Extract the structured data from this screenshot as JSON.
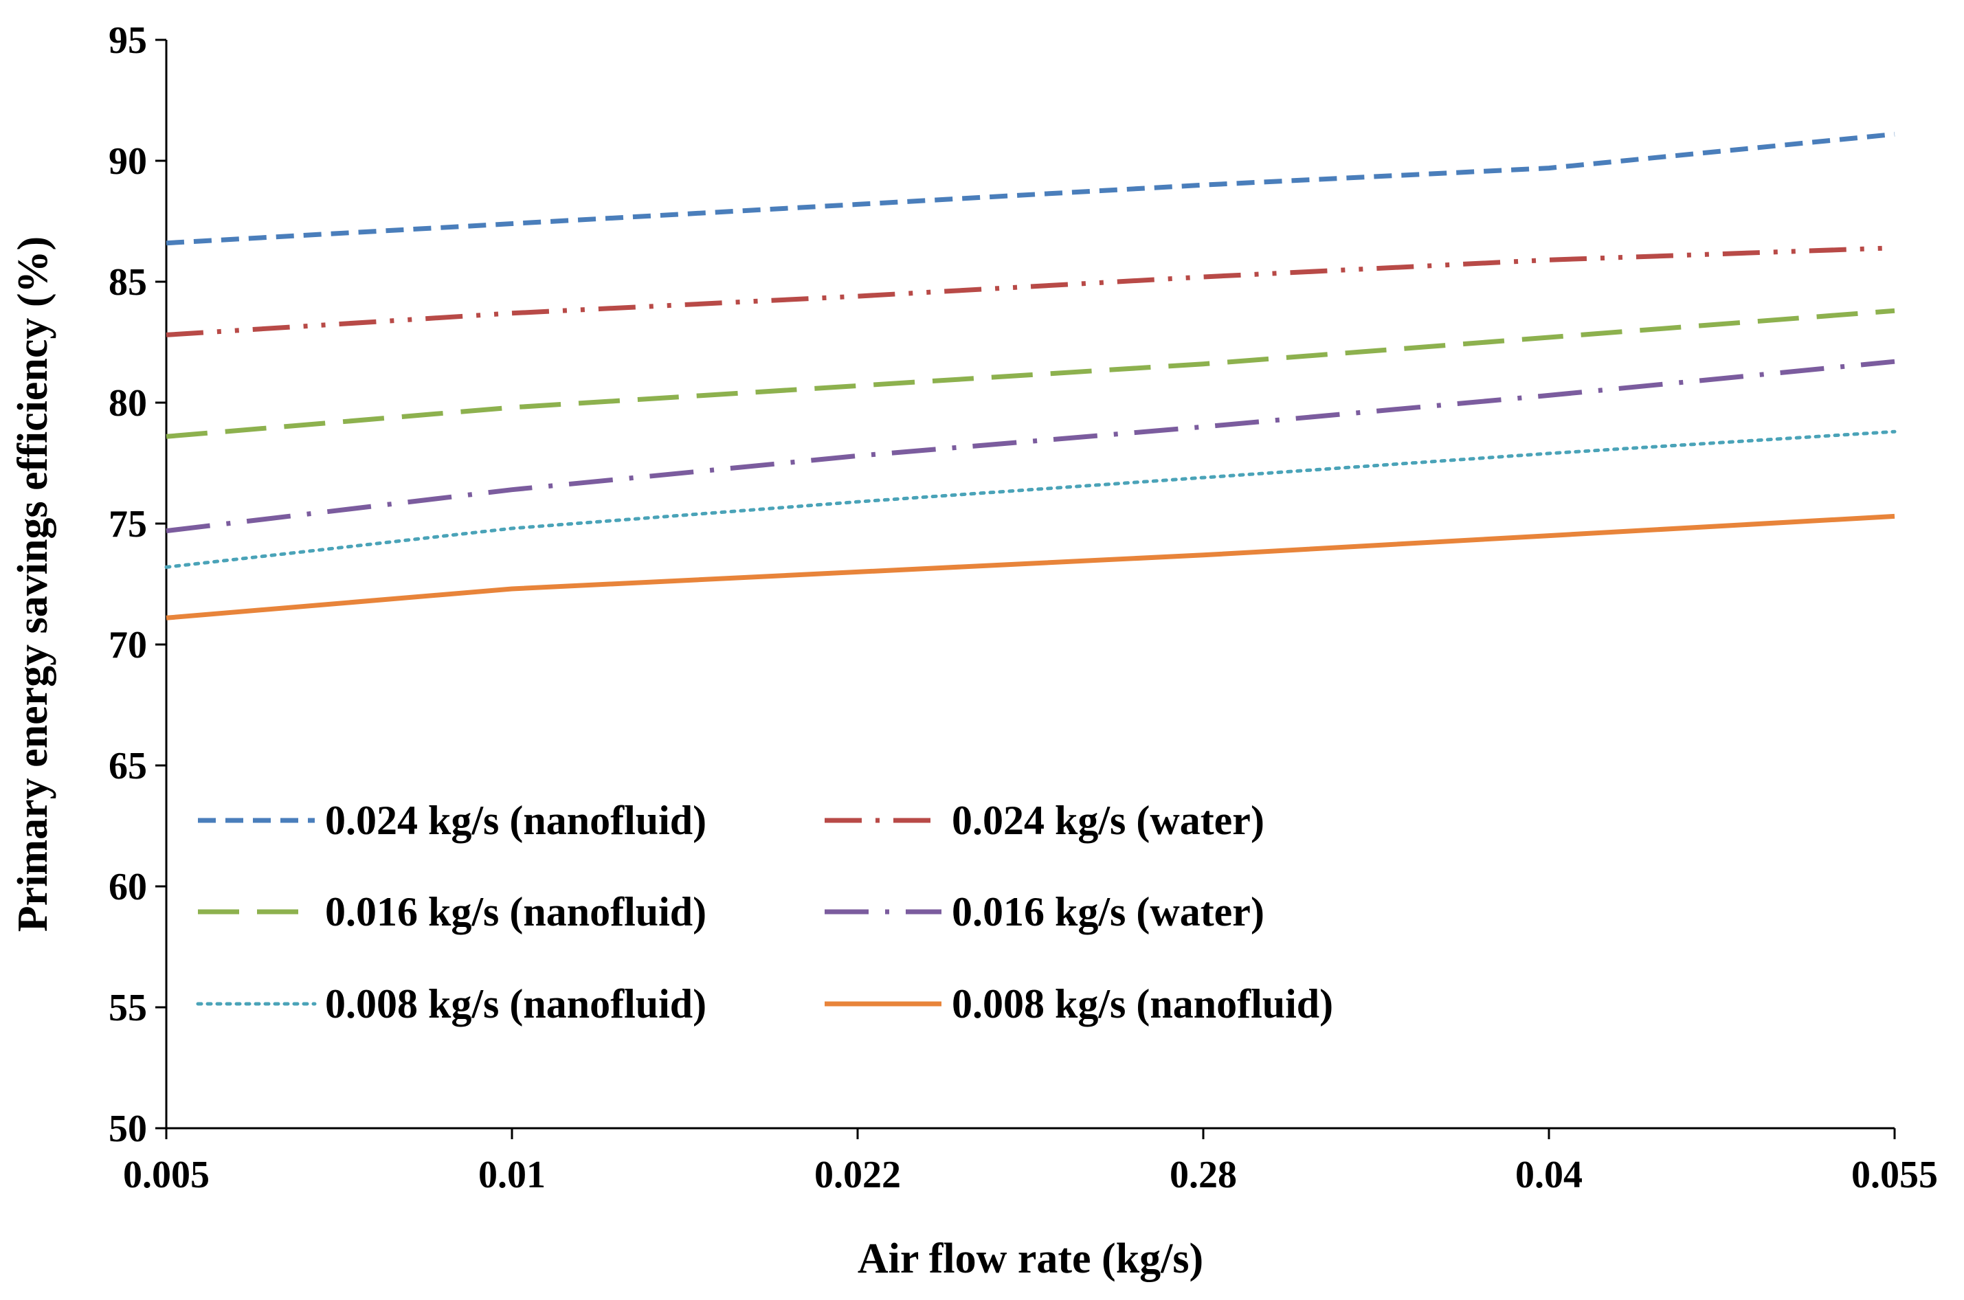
{
  "chart_data": {
    "type": "line",
    "title": "",
    "xlabel": "Air flow rate (kg/s)",
    "ylabel": "Primary  energy savings efficiency (%)",
    "categories": [
      "0.005",
      "0.01",
      "0.022",
      "0.28",
      "0.04",
      "0.055"
    ],
    "yticks": [
      "50",
      "55",
      "60",
      "65",
      "70",
      "75",
      "80",
      "85",
      "90",
      "95"
    ],
    "ylim": [
      50,
      95
    ],
    "grid": false,
    "legend_position": "lower-left",
    "series": [
      {
        "name": "0.024 kg/s (nanofluid)",
        "color": "#4a7ebb",
        "style": "dashed",
        "values": [
          86.6,
          87.4,
          88.2,
          89.0,
          89.7,
          91.1
        ]
      },
      {
        "name": "0.024 kg/s (water)",
        "color": "#b84a47",
        "style": "dash-dot-dot",
        "values": [
          82.8,
          83.7,
          84.4,
          85.2,
          85.9,
          86.4
        ]
      },
      {
        "name": "0.016 kg/s (nanofluid)",
        "color": "#8db14e",
        "style": "long-dash",
        "values": [
          78.6,
          79.8,
          80.7,
          81.6,
          82.7,
          83.8
        ]
      },
      {
        "name": "0.016 kg/s (water)",
        "color": "#7b5c9e",
        "style": "long-dash-dot",
        "values": [
          74.7,
          76.4,
          77.8,
          79.0,
          80.3,
          81.7
        ]
      },
      {
        "name": "0.008 kg/s (nanofluid)",
        "color": "#4aa3b8",
        "style": "dotted",
        "values": [
          73.2,
          74.8,
          75.9,
          76.9,
          77.9,
          78.8
        ]
      },
      {
        "name": "0.008 kg/s (nanofluid)",
        "color": "#e8843a",
        "style": "solid",
        "values": [
          71.1,
          72.3,
          73.0,
          73.7,
          74.5,
          75.3
        ]
      }
    ]
  }
}
